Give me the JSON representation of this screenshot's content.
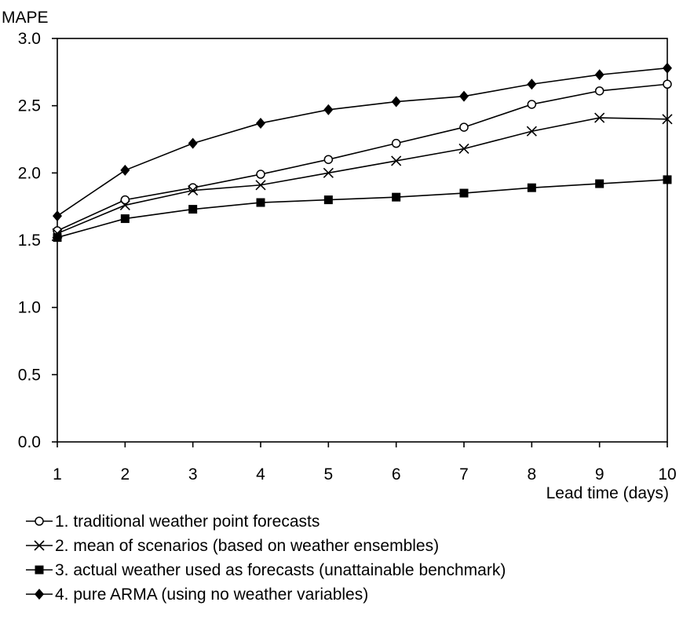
{
  "chart_data": {
    "type": "line",
    "ylabel": "MAPE",
    "xlabel": "Lead time (days)",
    "x": [
      1,
      2,
      3,
      4,
      5,
      6,
      7,
      8,
      9,
      10
    ],
    "xlim": [
      1,
      10
    ],
    "ylim": [
      0.0,
      3.0
    ],
    "xticks": [
      "1",
      "2",
      "3",
      "4",
      "5",
      "6",
      "7",
      "8",
      "9",
      "10"
    ],
    "yticks": [
      "0.0",
      "0.5",
      "1.0",
      "1.5",
      "2.0",
      "2.5",
      "3.0"
    ],
    "grid": false,
    "legend_position": "bottom",
    "series": [
      {
        "name": "1. traditional weather point forecasts",
        "marker": "circle-open",
        "values": [
          1.57,
          1.8,
          1.89,
          1.99,
          2.1,
          2.22,
          2.34,
          2.51,
          2.61,
          2.66
        ]
      },
      {
        "name": "2. mean of scenarios (based on weather ensembles)",
        "marker": "x",
        "values": [
          1.55,
          1.76,
          1.87,
          1.91,
          2.0,
          2.09,
          2.18,
          2.31,
          2.41,
          2.4
        ]
      },
      {
        "name": "3. actual weather used as forecasts (unattainable benchmark)",
        "marker": "square-filled",
        "values": [
          1.52,
          1.66,
          1.73,
          1.78,
          1.8,
          1.82,
          1.85,
          1.89,
          1.92,
          1.95
        ]
      },
      {
        "name": "4. pure ARMA (using no weather variables)",
        "marker": "diamond-filled",
        "values": [
          1.68,
          2.02,
          2.22,
          2.37,
          2.47,
          2.53,
          2.57,
          2.66,
          2.73,
          2.78
        ]
      }
    ]
  }
}
